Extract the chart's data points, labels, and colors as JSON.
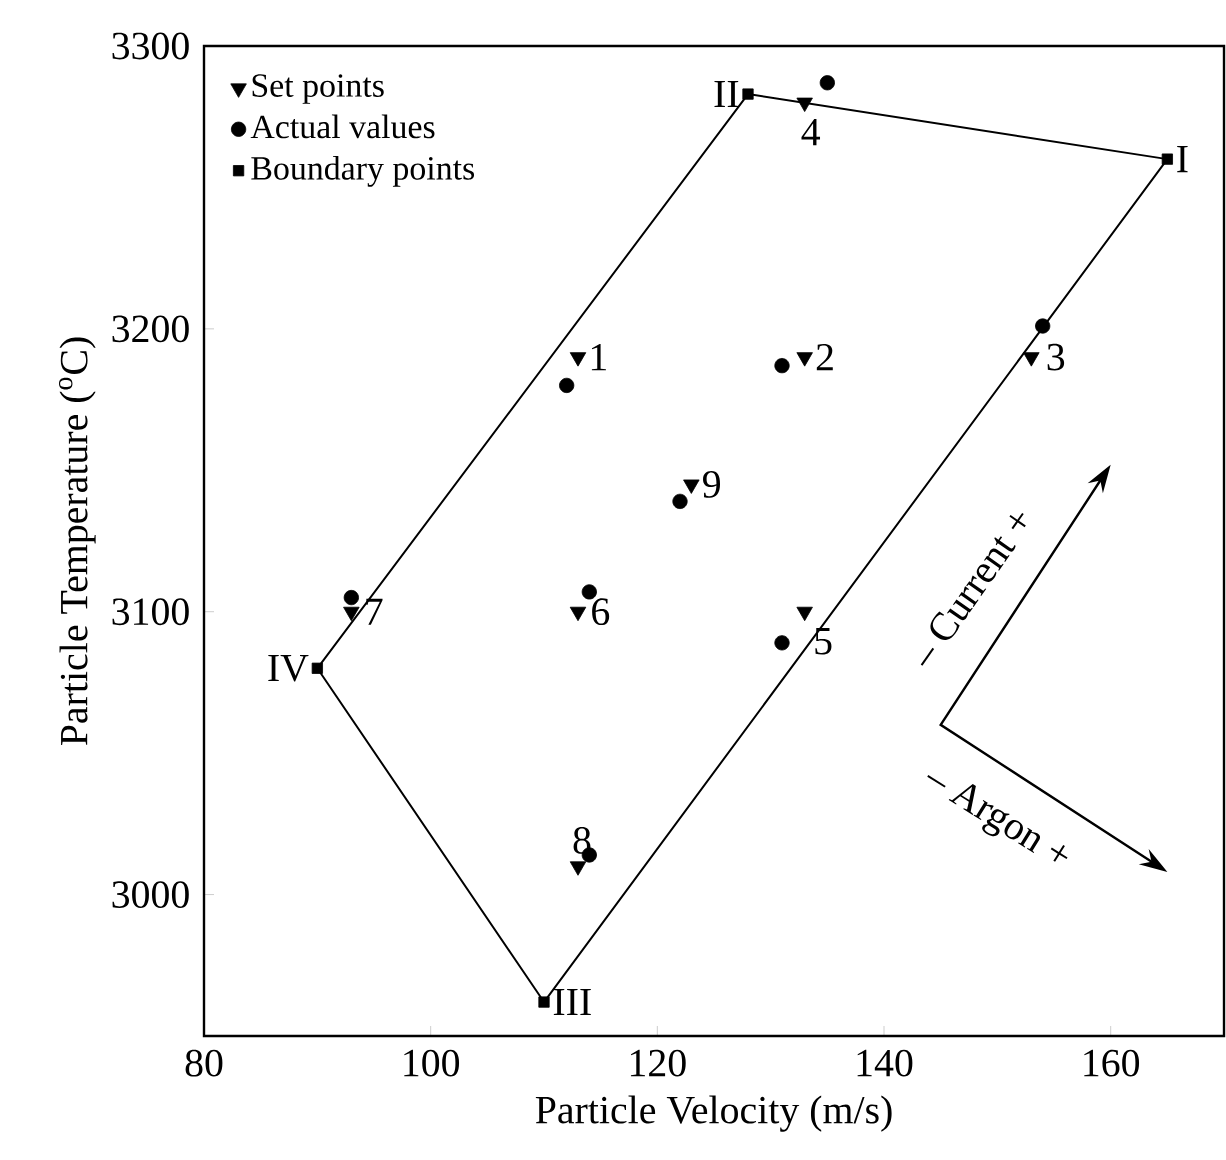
{
  "chart_data": {
    "type": "scatter",
    "xlabel": "Particle Velocity (m/s)",
    "ylabel": "Particle Temperature ($^{o}$C)",
    "xlim": [
      80,
      170
    ],
    "ylim": [
      2950,
      3300
    ],
    "xticks": [
      80,
      100,
      120,
      140,
      160
    ],
    "yticks": [
      3000,
      3100,
      3200,
      3300
    ],
    "grid": false,
    "legend": "top left",
    "series": [
      {
        "name": "Set points",
        "color": "#000000",
        "marker": "triangle",
        "x": [
          113,
          133,
          153,
          133,
          133,
          113,
          93,
          113,
          123
        ],
        "values": [
          3190,
          3190,
          3190,
          3280,
          3100,
          3100,
          3100,
          3010,
          3145
        ]
      },
      {
        "name": "Actual values",
        "color": "#000000",
        "marker": "circle",
        "x": [
          112,
          131,
          154,
          135,
          131,
          114,
          93,
          114,
          122
        ],
        "values": [
          3180,
          3187,
          3201,
          3287,
          3089,
          3107,
          3105,
          3014,
          3139
        ]
      },
      {
        "name": "Boundary points",
        "color": "#000000",
        "marker": "square",
        "x": [
          165,
          128,
          90,
          110
        ],
        "values": [
          3260,
          3283,
          3080,
          2962
        ]
      },
      {
        "type": "line",
        "color": "#000000",
        "marker": "none",
        "line_style": "solid",
        "x": [
          90,
          128,
          165
        ],
        "values": [
          3080,
          3283,
          3260
        ]
      },
      {
        "type": "line",
        "color": "#000000",
        "marker": "none",
        "line_style": "solid",
        "x": [
          90,
          110,
          165
        ],
        "values": [
          3080,
          2962,
          3260
        ]
      }
    ],
    "annotations": [
      {
        "text": "1",
        "x": 113,
        "y": 3190
      },
      {
        "text": "2",
        "x": 133,
        "y": 3190
      },
      {
        "text": "3",
        "x": 153,
        "y": 3190
      },
      {
        "text": "4",
        "x": 133,
        "y": 3280
      },
      {
        "text": "5",
        "x": 133,
        "y": 3100
      },
      {
        "text": "6",
        "x": 113,
        "y": 3100
      },
      {
        "text": "7",
        "x": 93,
        "y": 3100
      },
      {
        "text": "8",
        "x": 113,
        "y": 3010
      },
      {
        "text": "9",
        "x": 123,
        "y": 3145
      },
      {
        "text": "I",
        "x": 165,
        "y": 3260
      },
      {
        "text": "II",
        "x": 128,
        "y": 3283
      },
      {
        "text": "IV",
        "x": 90,
        "y": 3080
      },
      {
        "text": "III",
        "x": 110,
        "y": 2962
      },
      "– Current +",
      "– Argon +"
    ]
  }
}
